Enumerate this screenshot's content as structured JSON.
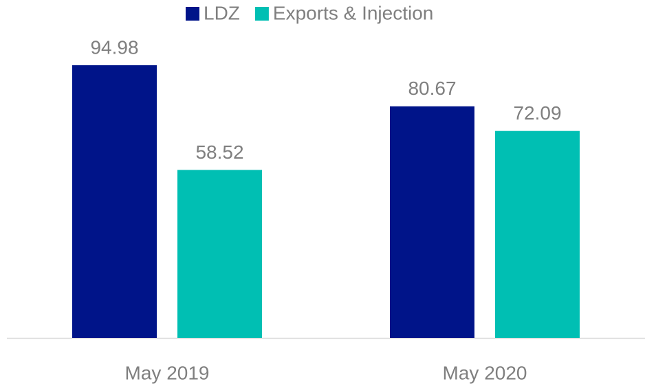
{
  "chart_data": {
    "type": "bar",
    "categories": [
      "May 2019",
      "May 2020"
    ],
    "series": [
      {
        "name": "LDZ",
        "color": "#001489",
        "values": [
          94.98,
          80.67
        ]
      },
      {
        "name": "Exports & Injection",
        "color": "#00bfb3",
        "values": [
          58.52,
          72.09
        ]
      }
    ],
    "legend": "top"
  }
}
